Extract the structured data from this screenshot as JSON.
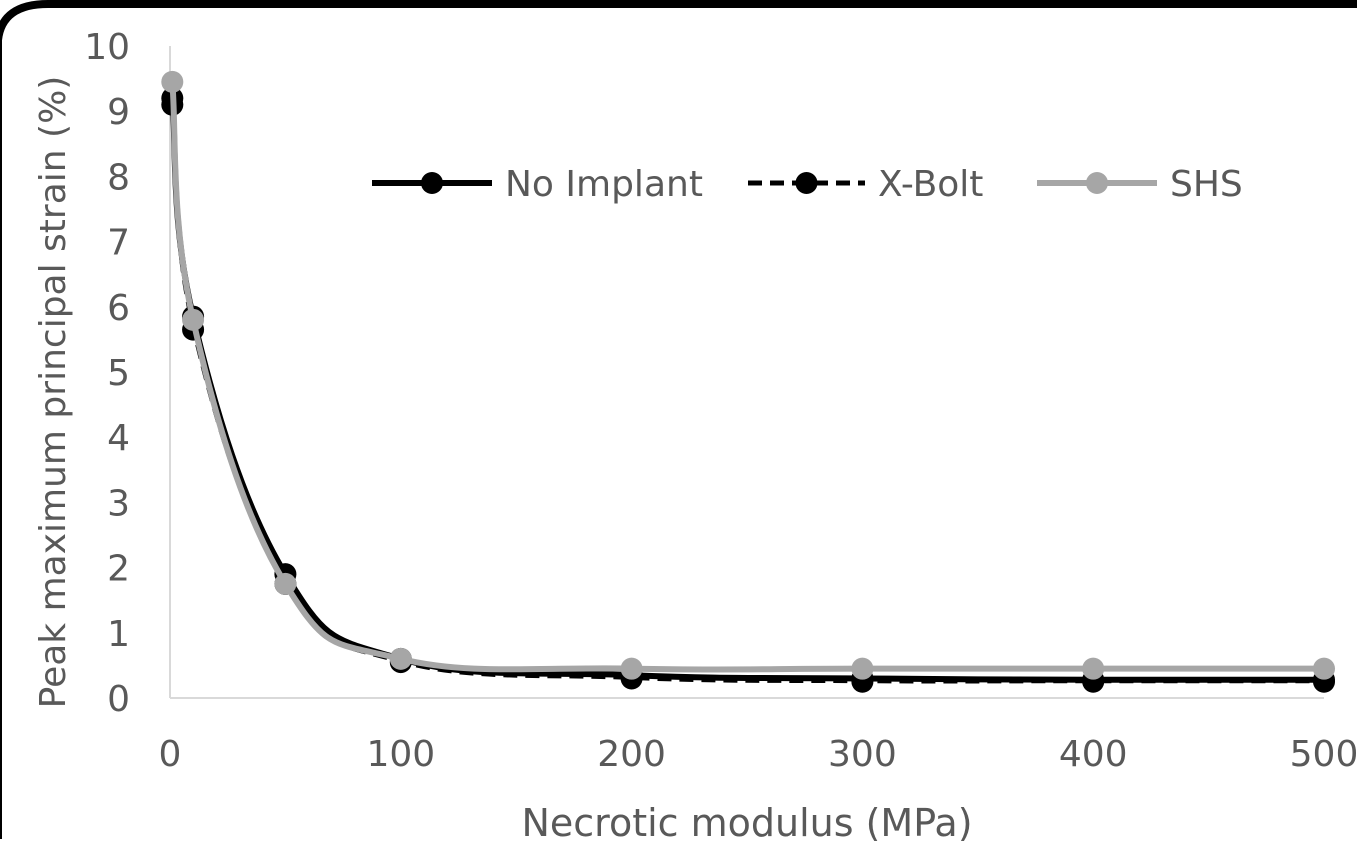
{
  "chart_data": {
    "type": "line",
    "title": "",
    "xlabel": "Necrotic modulus (MPa)",
    "ylabel": "Peak maximum principal strain (%)",
    "xlim": [
      0,
      500
    ],
    "ylim": [
      0,
      10
    ],
    "xticks": [
      "0",
      "100",
      "200",
      "300",
      "400",
      "500"
    ],
    "yticks": [
      "0",
      "1",
      "2",
      "3",
      "4",
      "5",
      "6",
      "7",
      "8",
      "9",
      "10"
    ],
    "grid": false,
    "legend_position": "top-right",
    "series": [
      {
        "name": "No Implant",
        "color": "#000000",
        "line_style": "solid",
        "x": [
          1,
          10,
          50,
          100,
          200,
          300,
          400,
          500
        ],
        "y": [
          9.2,
          5.85,
          1.9,
          0.6,
          0.35,
          0.3,
          0.28,
          0.28
        ]
      },
      {
        "name": "X-Bolt",
        "color": "#000000",
        "line_style": "dashed",
        "x": [
          1,
          10,
          50,
          100,
          200,
          300,
          400,
          500
        ],
        "y": [
          9.1,
          5.65,
          1.75,
          0.55,
          0.3,
          0.25,
          0.25,
          0.25
        ]
      },
      {
        "name": "SHS",
        "color": "#a6a6a6",
        "line_style": "solid",
        "x": [
          1,
          10,
          50,
          100,
          200,
          300,
          400,
          500
        ],
        "y": [
          9.45,
          5.8,
          1.75,
          0.6,
          0.45,
          0.45,
          0.45,
          0.45
        ]
      }
    ]
  }
}
